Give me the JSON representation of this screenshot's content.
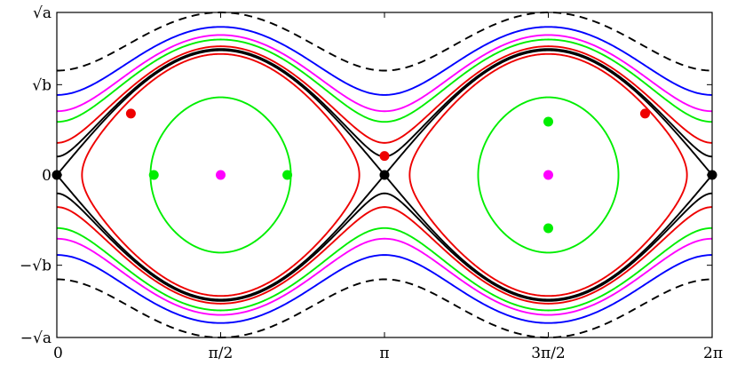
{
  "chart_data": {
    "type": "line",
    "title": "",
    "xlabel": "",
    "ylabel": "",
    "xlim": [
      0,
      6.283185
    ],
    "ylim": [
      -1.8,
      1.8
    ],
    "grid": false,
    "x_ticks": [
      {
        "value": 0,
        "label": "0"
      },
      {
        "value": 1.570796,
        "label": "π/2"
      },
      {
        "value": 3.141593,
        "label": "π"
      },
      {
        "value": 4.712389,
        "label": "3π/2"
      },
      {
        "value": 6.283185,
        "label": "2π"
      }
    ],
    "y_ticks": [
      {
        "value": 1.8,
        "label": "√a"
      },
      {
        "value": 1.0,
        "label": "√b"
      },
      {
        "value": 0,
        "label": "0"
      },
      {
        "value": -1.0,
        "label": "−√b"
      },
      {
        "value": -1.8,
        "label": "−√a"
      }
    ],
    "separatrix_level": 1.38,
    "colors": {
      "black": "#000000",
      "blue": "#0000ff",
      "magenta": "#ff00ff",
      "green": "#00ee00",
      "red": "#ee0000"
    },
    "series": [
      {
        "color": "black",
        "style": "dashed",
        "kind": "rotation",
        "level": 1.8
      },
      {
        "color": "blue",
        "style": "solid",
        "kind": "rotation",
        "level": 1.64
      },
      {
        "color": "magenta",
        "style": "solid",
        "kind": "rotation",
        "level": 1.55
      },
      {
        "color": "green",
        "style": "solid",
        "kind": "rotation",
        "level": 1.5
      },
      {
        "color": "red",
        "style": "solid",
        "kind": "rotation",
        "level": 1.425
      },
      {
        "color": "black",
        "style": "solid",
        "kind": "rotation",
        "level": 1.395
      },
      {
        "color": "black",
        "style": "solid",
        "kind": "separatrix",
        "level": 1.38
      },
      {
        "color": "red",
        "style": "solid",
        "kind": "libration",
        "level": 1.34
      },
      {
        "color": "green",
        "style": "solid",
        "kind": "libration",
        "level": 0.86
      }
    ],
    "points": [
      {
        "x": 0,
        "y": 0,
        "color": "black"
      },
      {
        "x": 3.141593,
        "y": 0,
        "color": "black"
      },
      {
        "x": 6.283185,
        "y": 0,
        "color": "black"
      },
      {
        "x": 1.570796,
        "y": 0,
        "color": "magenta"
      },
      {
        "x": 4.712389,
        "y": 0,
        "color": "magenta"
      },
      {
        "x": 0.93,
        "y": 0,
        "color": "green"
      },
      {
        "x": 2.21,
        "y": 0,
        "color": "green"
      },
      {
        "x": 4.712389,
        "y": 0.59,
        "color": "green"
      },
      {
        "x": 4.712389,
        "y": -0.59,
        "color": "green"
      },
      {
        "x": 3.141593,
        "y": 0.21,
        "color": "red"
      },
      {
        "x": 0.71,
        "y": 0.68,
        "color": "red"
      },
      {
        "x": 5.64,
        "y": 0.68,
        "color": "red"
      }
    ]
  }
}
